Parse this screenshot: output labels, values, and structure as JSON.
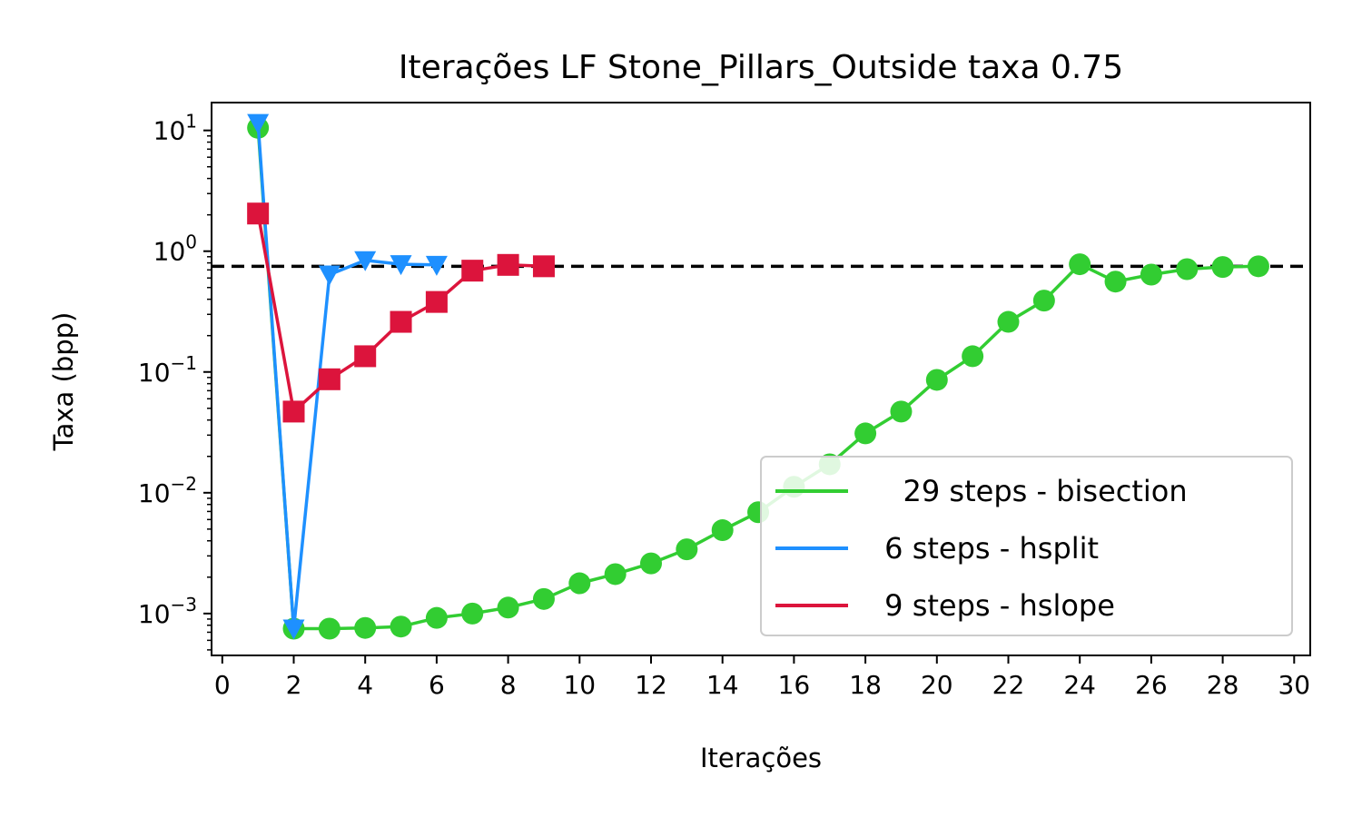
{
  "chart_data": {
    "type": "line",
    "title": "Iterações LF Stone_Pillars_Outside taxa 0.75",
    "xlabel": "Iterações",
    "ylabel": "Taxa (bpp)",
    "xlim": [
      -0.3,
      30.45
    ],
    "ylim": [
      0.00045,
      17
    ],
    "yscale": "log",
    "x_ticks": [
      "0",
      "2",
      "4",
      "6",
      "8",
      "10",
      "12",
      "14",
      "16",
      "18",
      "20",
      "22",
      "24",
      "26",
      "28",
      "30"
    ],
    "y_ticks": [
      {
        "value": 0.001,
        "base": "10",
        "exp": "−3"
      },
      {
        "value": 0.01,
        "base": "10",
        "exp": "−2"
      },
      {
        "value": 0.1,
        "base": "10",
        "exp": "−1"
      },
      {
        "value": 1,
        "base": "10",
        "exp": "0"
      },
      {
        "value": 10,
        "base": "10",
        "exp": "1"
      }
    ],
    "reference_line": {
      "y": 0.75,
      "style": "dashed",
      "color": "#000000"
    },
    "legend_position": "lower right",
    "series": [
      {
        "name": "   29 steps - bisection",
        "color": "#32cd32",
        "marker": "circle",
        "x": [
          1,
          2,
          3,
          4,
          5,
          6,
          7,
          8,
          9,
          10,
          11,
          12,
          13,
          14,
          15,
          16,
          17,
          18,
          19,
          20,
          21,
          22,
          23,
          24,
          25,
          26,
          27,
          28,
          29
        ],
        "y": [
          10.5,
          0.00075,
          0.00075,
          0.00076,
          0.00078,
          0.00092,
          0.001,
          0.00112,
          0.00132,
          0.00178,
          0.00212,
          0.0026,
          0.0034,
          0.0049,
          0.0069,
          0.0112,
          0.0172,
          0.031,
          0.047,
          0.086,
          0.135,
          0.26,
          0.39,
          0.78,
          0.56,
          0.64,
          0.71,
          0.74,
          0.75
        ]
      },
      {
        "name": " 6 steps - hsplit",
        "color": "#1e90ff",
        "marker": "triangle-down",
        "x": [
          1,
          2,
          3,
          4,
          5,
          6
        ],
        "y": [
          11.5,
          0.00075,
          0.64,
          0.84,
          0.78,
          0.77
        ]
      },
      {
        "name": " 9 steps - hslope",
        "color": "#dc143c",
        "marker": "square",
        "x": [
          1,
          2,
          3,
          4,
          5,
          6,
          7,
          8,
          9
        ],
        "y": [
          2.05,
          0.047,
          0.087,
          0.135,
          0.26,
          0.38,
          0.69,
          0.77,
          0.75
        ]
      }
    ]
  }
}
